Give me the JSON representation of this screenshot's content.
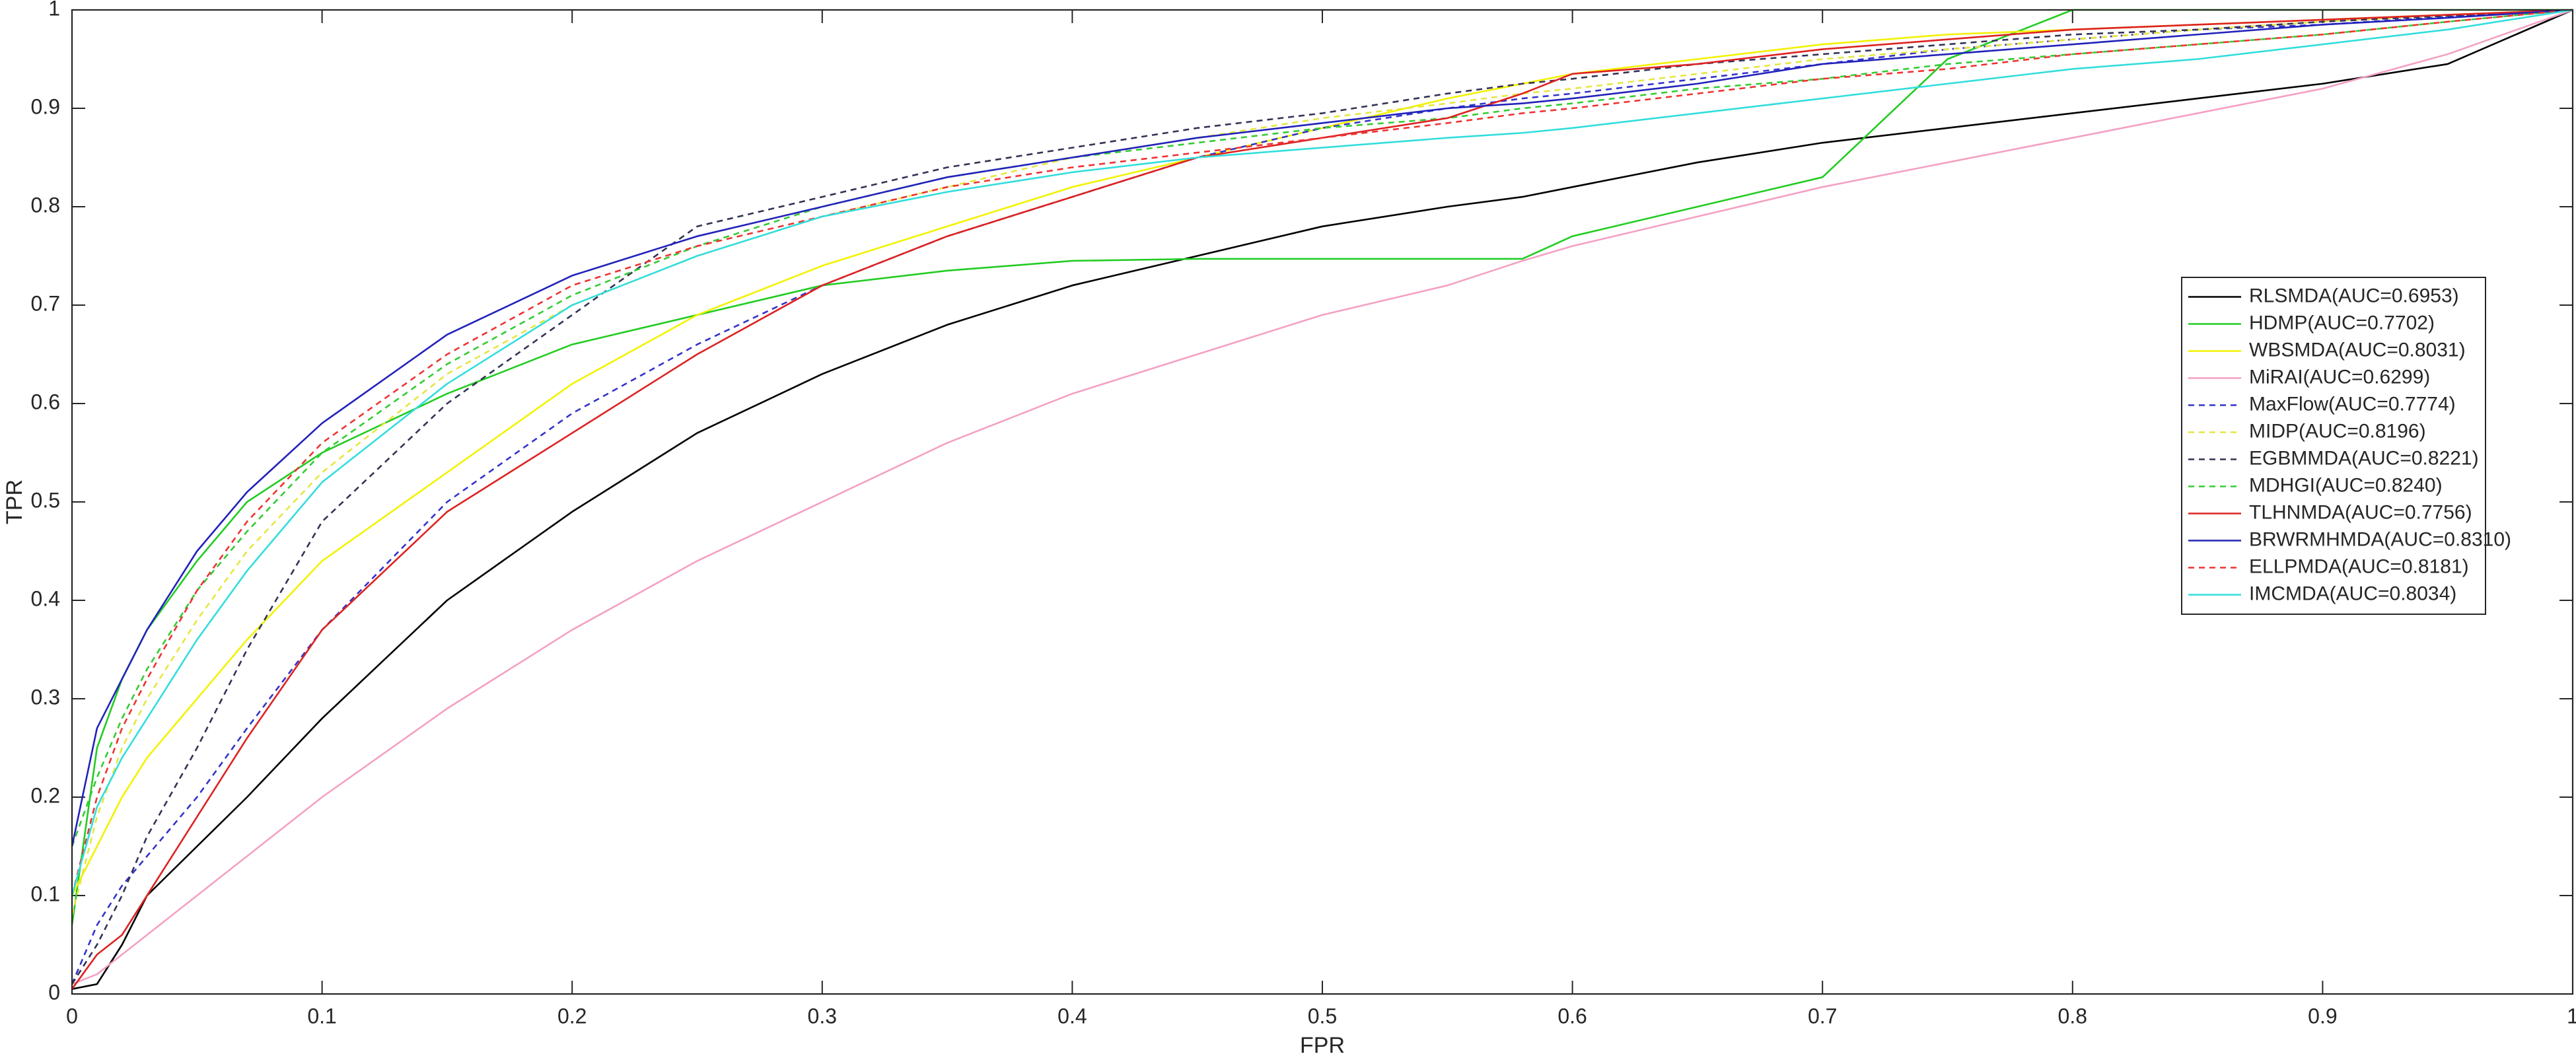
{
  "chart_data": {
    "type": "line",
    "xlabel": "FPR",
    "ylabel": "TPR",
    "xlim": [
      0,
      1
    ],
    "ylim": [
      0,
      1
    ],
    "xticks": [
      0,
      0.1,
      0.2,
      0.3,
      0.4,
      0.5,
      0.6,
      0.7,
      0.8,
      0.9,
      1
    ],
    "yticks": [
      0,
      0.1,
      0.2,
      0.3,
      0.4,
      0.5,
      0.6,
      0.7,
      0.8,
      0.9,
      1
    ],
    "grid": false,
    "legend_loc": "east",
    "x": [
      0,
      0.01,
      0.02,
      0.03,
      0.05,
      0.07,
      0.1,
      0.15,
      0.2,
      0.25,
      0.3,
      0.35,
      0.4,
      0.45,
      0.5,
      0.55,
      0.58,
      0.6,
      0.65,
      0.7,
      0.75,
      0.8,
      0.85,
      0.9,
      0.95,
      1
    ],
    "series": [
      {
        "name": "RLSMDA(AUC=0.6953)",
        "color": "#000000",
        "dashed": false,
        "values": [
          0.005,
          0.01,
          0.05,
          0.1,
          0.15,
          0.2,
          0.28,
          0.4,
          0.49,
          0.57,
          0.63,
          0.68,
          0.72,
          0.75,
          0.78,
          0.8,
          0.81,
          0.82,
          0.845,
          0.865,
          0.88,
          0.895,
          0.91,
          0.925,
          0.945,
          1
        ]
      },
      {
        "name": "HDMP(AUC=0.7702)",
        "color": "#22cc22",
        "dashed": false,
        "values": [
          0.07,
          0.25,
          0.32,
          0.37,
          0.44,
          0.5,
          0.55,
          0.61,
          0.66,
          0.69,
          0.72,
          0.735,
          0.745,
          0.747,
          0.747,
          0.747,
          0.747,
          0.77,
          0.8,
          0.83,
          0.95,
          1,
          1,
          1,
          1,
          1
        ]
      },
      {
        "name": "WBSMDA(AUC=0.8031)",
        "color": "#f2f200",
        "dashed": false,
        "values": [
          0.1,
          0.15,
          0.2,
          0.24,
          0.3,
          0.36,
          0.44,
          0.53,
          0.62,
          0.69,
          0.74,
          0.78,
          0.82,
          0.85,
          0.88,
          0.91,
          0.925,
          0.935,
          0.95,
          0.965,
          0.975,
          0.98,
          0.985,
          0.99,
          0.995,
          1
        ]
      },
      {
        "name": "MiRAI(AUC=0.6299)",
        "color": "#f4a0c4",
        "dashed": false,
        "values": [
          0.01,
          0.02,
          0.04,
          0.06,
          0.1,
          0.14,
          0.2,
          0.29,
          0.37,
          0.44,
          0.5,
          0.56,
          0.61,
          0.65,
          0.69,
          0.72,
          0.745,
          0.76,
          0.79,
          0.82,
          0.845,
          0.87,
          0.895,
          0.92,
          0.955,
          1
        ]
      },
      {
        "name": "MaxFlow(AUC=0.7774)",
        "color": "#3333cc",
        "dashed": true,
        "values": [
          0.01,
          0.07,
          0.11,
          0.14,
          0.2,
          0.27,
          0.37,
          0.5,
          0.59,
          0.66,
          0.72,
          0.77,
          0.81,
          0.85,
          0.88,
          0.9,
          0.91,
          0.915,
          0.93,
          0.945,
          0.96,
          0.97,
          0.98,
          0.985,
          0.993,
          1
        ]
      },
      {
        "name": "MIDP(AUC=0.8196)",
        "color": "#e6e640",
        "dashed": true,
        "values": [
          0.08,
          0.18,
          0.25,
          0.3,
          0.38,
          0.45,
          0.53,
          0.63,
          0.7,
          0.75,
          0.79,
          0.82,
          0.85,
          0.87,
          0.89,
          0.905,
          0.915,
          0.92,
          0.935,
          0.95,
          0.96,
          0.97,
          0.98,
          0.988,
          0.995,
          1
        ]
      },
      {
        "name": "EGBMMDA(AUC=0.8221)",
        "color": "#333355",
        "dashed": true,
        "values": [
          0.01,
          0.05,
          0.1,
          0.16,
          0.25,
          0.35,
          0.48,
          0.6,
          0.69,
          0.78,
          0.81,
          0.84,
          0.86,
          0.88,
          0.895,
          0.915,
          0.925,
          0.93,
          0.945,
          0.955,
          0.965,
          0.975,
          0.98,
          0.988,
          0.994,
          1
        ]
      },
      {
        "name": "MDHGI(AUC=0.8240)",
        "color": "#33cc33",
        "dashed": true,
        "values": [
          0.15,
          0.22,
          0.28,
          0.33,
          0.41,
          0.47,
          0.55,
          0.64,
          0.71,
          0.76,
          0.8,
          0.83,
          0.85,
          0.865,
          0.88,
          0.89,
          0.9,
          0.905,
          0.92,
          0.93,
          0.945,
          0.955,
          0.965,
          0.975,
          0.988,
          1
        ]
      },
      {
        "name": "TLHNMDA(AUC=0.7756)",
        "color": "#dd2222",
        "dashed": false,
        "values": [
          0.005,
          0.04,
          0.06,
          0.1,
          0.18,
          0.26,
          0.37,
          0.49,
          0.57,
          0.65,
          0.72,
          0.77,
          0.81,
          0.85,
          0.87,
          0.89,
          0.915,
          0.935,
          0.945,
          0.96,
          0.97,
          0.98,
          0.985,
          0.99,
          0.995,
          1
        ]
      },
      {
        "name": "BRWRMHMDA(AUC=0.8310)",
        "color": "#2222bb",
        "dashed": false,
        "values": [
          0.15,
          0.27,
          0.32,
          0.37,
          0.45,
          0.51,
          0.58,
          0.67,
          0.73,
          0.77,
          0.8,
          0.83,
          0.85,
          0.87,
          0.885,
          0.9,
          0.905,
          0.91,
          0.925,
          0.945,
          0.955,
          0.965,
          0.975,
          0.985,
          0.992,
          1
        ]
      },
      {
        "name": "ELLPMDA(AUC=0.8181)",
        "color": "#ee3333",
        "dashed": true,
        "values": [
          0.1,
          0.2,
          0.27,
          0.32,
          0.41,
          0.48,
          0.56,
          0.65,
          0.72,
          0.76,
          0.79,
          0.82,
          0.84,
          0.855,
          0.87,
          0.885,
          0.895,
          0.9,
          0.915,
          0.93,
          0.94,
          0.955,
          0.965,
          0.975,
          0.988,
          1
        ]
      },
      {
        "name": "IMCMDA(AUC=0.8034)",
        "color": "#33dddd",
        "dashed": false,
        "values": [
          0.1,
          0.19,
          0.24,
          0.28,
          0.36,
          0.43,
          0.52,
          0.62,
          0.7,
          0.75,
          0.79,
          0.815,
          0.835,
          0.85,
          0.86,
          0.87,
          0.875,
          0.88,
          0.895,
          0.91,
          0.925,
          0.94,
          0.95,
          0.965,
          0.98,
          1
        ]
      }
    ]
  }
}
